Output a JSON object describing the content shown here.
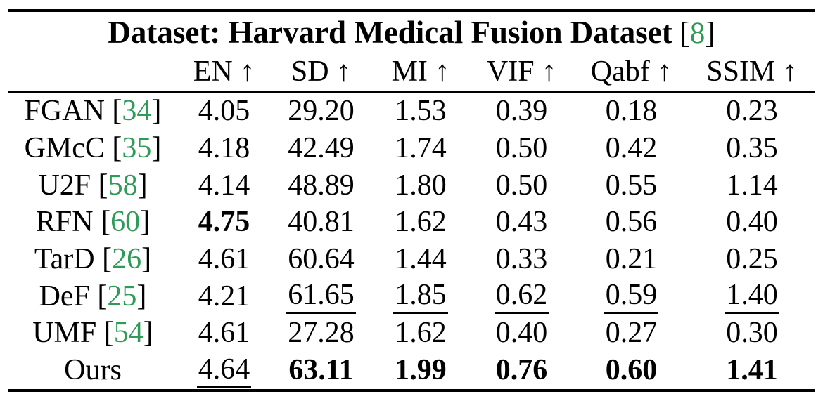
{
  "colors": {
    "background": "#ffffff",
    "text": "#000000",
    "citation_green": "#2E9B57",
    "rule": "#000000"
  },
  "table": {
    "title": {
      "text": "Dataset: Harvard Medical Fusion Dataset",
      "citation": "8"
    },
    "bracket_open": "[",
    "bracket_close": "]",
    "metric_headers": [
      "EN ↑",
      "SD ↑",
      "MI ↑",
      "VIF ↑",
      "Qabf ↑",
      "SSIM ↑"
    ],
    "rows": [
      {
        "method": "FGAN",
        "citation": "34",
        "values": [
          {
            "v": "4.05"
          },
          {
            "v": "29.20"
          },
          {
            "v": "1.53"
          },
          {
            "v": "0.39"
          },
          {
            "v": "0.18"
          },
          {
            "v": "0.23"
          }
        ]
      },
      {
        "method": "GMcC",
        "citation": "35",
        "values": [
          {
            "v": "4.18"
          },
          {
            "v": "42.49"
          },
          {
            "v": "1.74"
          },
          {
            "v": "0.50"
          },
          {
            "v": "0.42"
          },
          {
            "v": "0.35"
          }
        ]
      },
      {
        "method": "U2F",
        "citation": "58",
        "values": [
          {
            "v": "4.14"
          },
          {
            "v": "48.89"
          },
          {
            "v": "1.80"
          },
          {
            "v": "0.50"
          },
          {
            "v": "0.55"
          },
          {
            "v": "1.14"
          }
        ]
      },
      {
        "method": "RFN",
        "citation": "60",
        "values": [
          {
            "v": "4.75",
            "style": "bold"
          },
          {
            "v": "40.81"
          },
          {
            "v": "1.62"
          },
          {
            "v": "0.43"
          },
          {
            "v": "0.56"
          },
          {
            "v": "0.40"
          }
        ]
      },
      {
        "method": "TarD",
        "citation": "26",
        "values": [
          {
            "v": "4.61"
          },
          {
            "v": "60.64"
          },
          {
            "v": "1.44"
          },
          {
            "v": "0.33"
          },
          {
            "v": "0.21"
          },
          {
            "v": "0.25"
          }
        ]
      },
      {
        "method": "DeF",
        "citation": "25",
        "values": [
          {
            "v": "4.21"
          },
          {
            "v": "61.65",
            "style": "underline"
          },
          {
            "v": "1.85",
            "style": "underline"
          },
          {
            "v": "0.62",
            "style": "underline"
          },
          {
            "v": "0.59",
            "style": "underline"
          },
          {
            "v": "1.40",
            "style": "underline"
          }
        ]
      },
      {
        "method": "UMF",
        "citation": "54",
        "values": [
          {
            "v": "4.61"
          },
          {
            "v": "27.28"
          },
          {
            "v": "1.62"
          },
          {
            "v": "0.40"
          },
          {
            "v": "0.27"
          },
          {
            "v": "0.30"
          }
        ]
      },
      {
        "method": "Ours",
        "citation": null,
        "values": [
          {
            "v": "4.64",
            "style": "underline"
          },
          {
            "v": "63.11",
            "style": "bold"
          },
          {
            "v": "1.99",
            "style": "bold"
          },
          {
            "v": "0.76",
            "style": "bold"
          },
          {
            "v": "0.60",
            "style": "bold"
          },
          {
            "v": "1.41",
            "style": "bold"
          }
        ]
      }
    ]
  }
}
